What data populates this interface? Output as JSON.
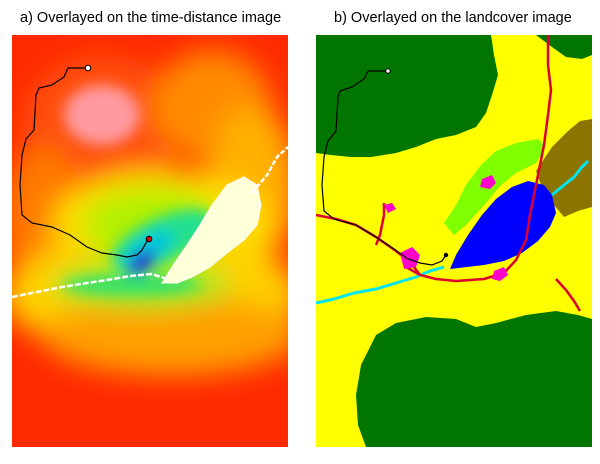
{
  "captions": {
    "a": "a) Overlayed on the time-distance image",
    "b": "b) Overlayed on the landcover image"
  },
  "colors": {
    "forest": "#007600",
    "field": "#ffff00",
    "meadow": "#7fff00",
    "lake": "#0000ff",
    "bare": "#8b7500",
    "river": "#00e5ee",
    "road": "#dd0033",
    "urban": "#ff00cc",
    "path": "#000000",
    "td_far": "#ff0000",
    "td_mid": "#ffd000",
    "td_near": "#00d080",
    "td_lake": "#ffffd8"
  }
}
